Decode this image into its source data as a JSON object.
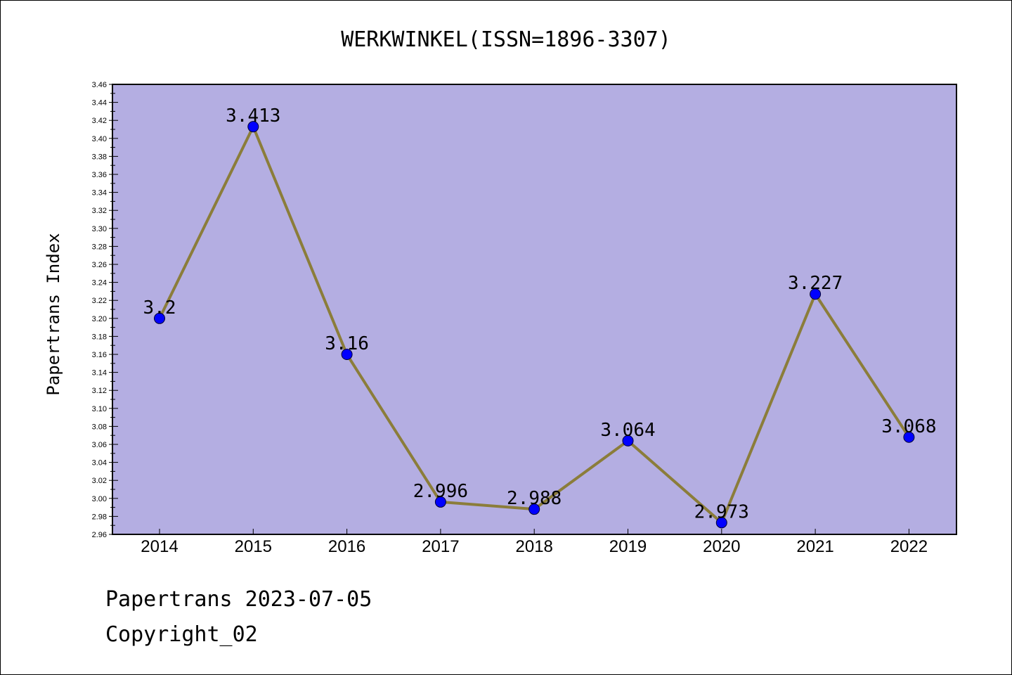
{
  "chart_data": {
    "type": "line",
    "title": "WERKWINKEL(ISSN=1896-3307)",
    "xlabel": "",
    "ylabel": "Papertrans Index",
    "categories": [
      "2014",
      "2015",
      "2016",
      "2017",
      "2018",
      "2019",
      "2020",
      "2021",
      "2022"
    ],
    "values": [
      3.2,
      3.413,
      3.16,
      2.996,
      2.988,
      3.064,
      2.973,
      3.227,
      3.068
    ],
    "value_labels": [
      "3.2",
      "3.413",
      "3.16",
      "2.996",
      "2.988",
      "3.064",
      "2.973",
      "3.227",
      "3.068"
    ],
    "ylim": [
      2.96,
      3.46
    ],
    "ytick_labels": [
      "2.96",
      "2.98",
      "3.00",
      "3.02",
      "3.04",
      "3.06",
      "3.08",
      "3.10",
      "3.12",
      "3.14",
      "3.16",
      "3.18",
      "3.20",
      "3.22",
      "3.24",
      "3.26",
      "3.28",
      "3.30",
      "3.32",
      "3.34",
      "3.36",
      "3.38",
      "3.40",
      "3.42",
      "3.44",
      "3.46"
    ],
    "grid": false,
    "legend": "none",
    "colors": {
      "plot_background": "#b4aee2",
      "line": "#8b7d3a",
      "marker": "#0000ff"
    }
  },
  "footer": {
    "line1": "Papertrans 2023-07-05",
    "line2": "Copyright_02"
  }
}
